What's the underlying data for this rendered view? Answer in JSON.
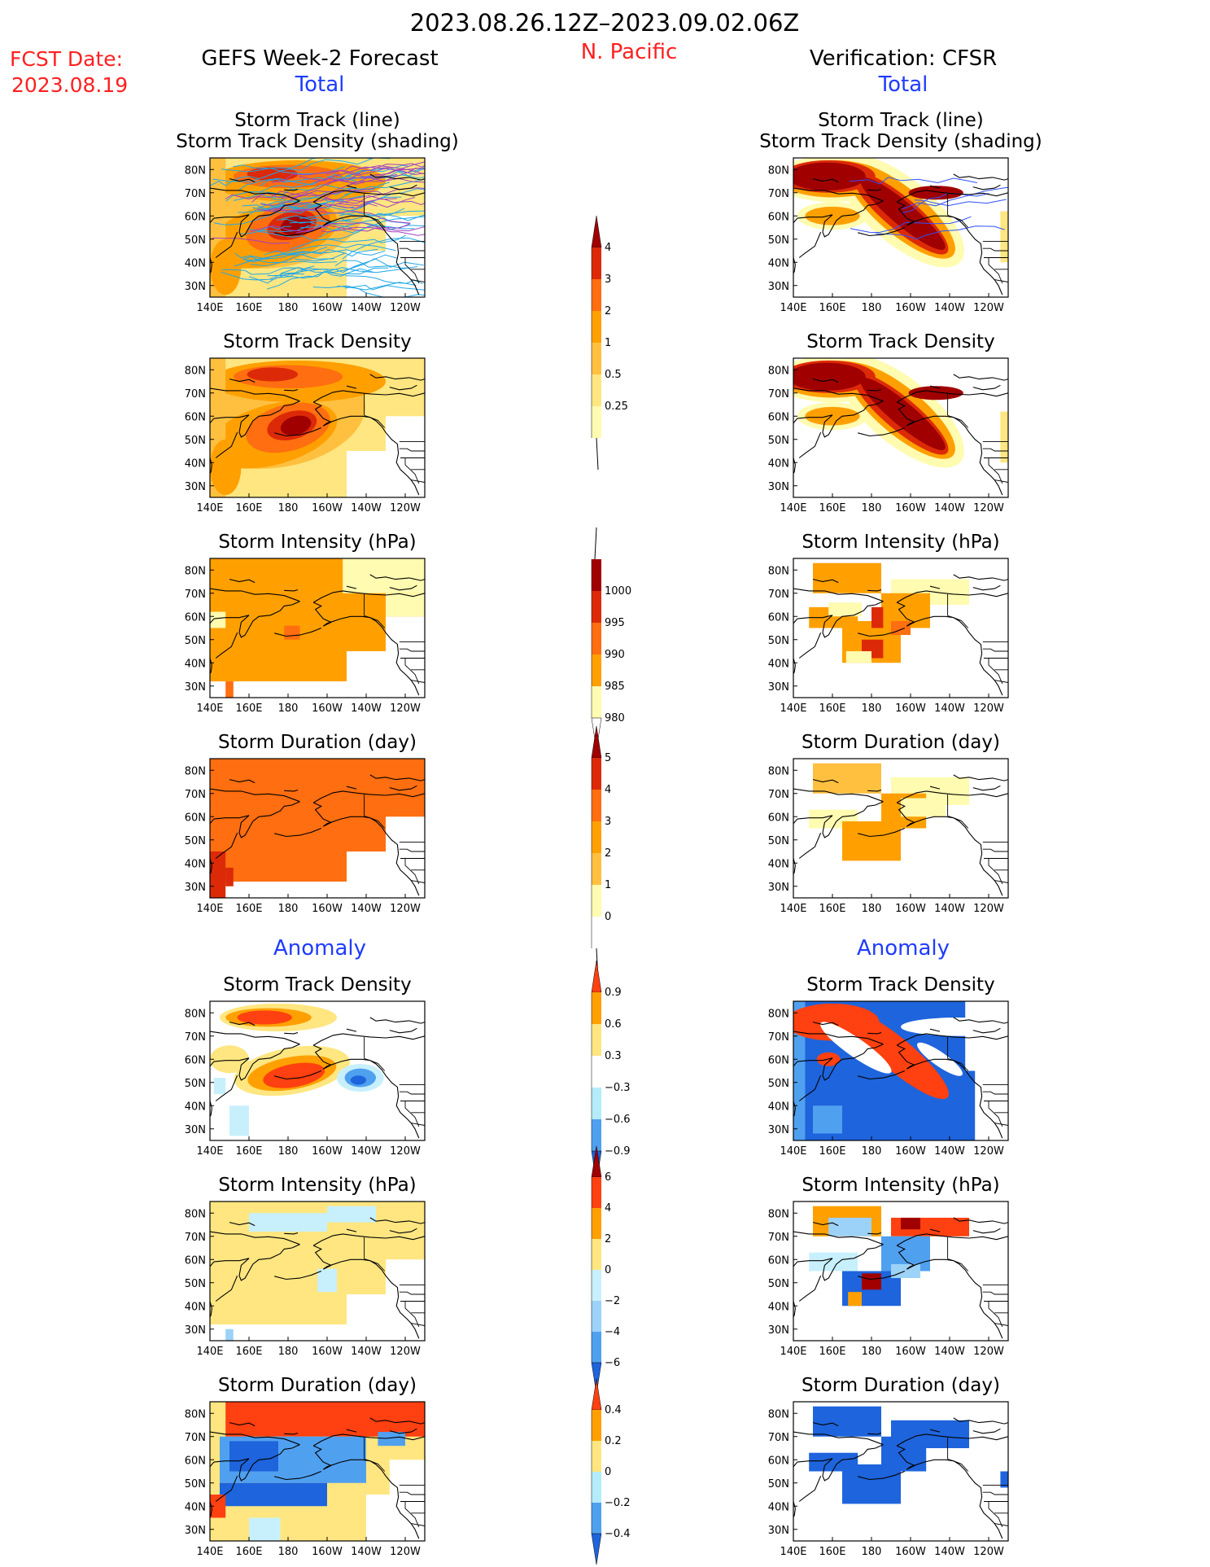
{
  "header": {
    "period": "2023.08.26.12Z–2023.09.02.06Z",
    "region": "N. Pacific",
    "fcst_label": "FCST Date:",
    "fcst_date": "2023.08.19",
    "left_title": "GEFS Week-2 Forecast",
    "right_title": "Verification: CFSR",
    "total_label": "Total",
    "anomaly_label": "Anomaly"
  },
  "colors": {
    "title_red": "#ff2020",
    "section_blue": "#1e3cff",
    "land_black": "#000000",
    "track_cyan": "#1fa8e8",
    "track_purple": "#a040c0",
    "track_blue": "#3050ff"
  },
  "axes": {
    "lon_ticks": [
      "140E",
      "160E",
      "180",
      "160W",
      "140W",
      "120W"
    ],
    "lat_ticks": [
      "80N",
      "70N",
      "60N",
      "50N",
      "40N",
      "30N"
    ]
  },
  "panels": {
    "track": "Storm Track (line)",
    "track_shading": "Storm Track Density (shading)",
    "density": "Storm Track Density",
    "intensity": "Storm Intensity (hPa)",
    "duration": "Storm Duration (day)"
  },
  "colorbars": {
    "density": {
      "labels": [
        "4",
        "3",
        "2",
        "1",
        "0.5",
        "0.25"
      ],
      "colors": [
        "#fffbb0",
        "#ffe680",
        "#ffc040",
        "#ffa000",
        "#ff6e10",
        "#dc2a08",
        "#a00000"
      ]
    },
    "intensity": {
      "labels": [
        "1000",
        "995",
        "990",
        "985",
        "980"
      ],
      "colors": [
        "#ffffff",
        "#fffbb0",
        "#ffa000",
        "#ff6e10",
        "#dc2a08",
        "#a00000"
      ]
    },
    "duration": {
      "labels": [
        "5",
        "4",
        "3",
        "2",
        "1",
        "0"
      ],
      "colors": [
        "#ffffff",
        "#fffbb0",
        "#ffc040",
        "#ffa000",
        "#ff6e10",
        "#dc2a08",
        "#a00000"
      ]
    },
    "anom_density": {
      "labels": [
        "0.9",
        "0.6",
        "0.3",
        "−0.3",
        "−0.6",
        "−0.9"
      ],
      "colors": [
        "#1e64dc",
        "#50a0f0",
        "#b4ecfa",
        "#ffffff",
        "#ffe680",
        "#ffa000",
        "#ff4010"
      ]
    },
    "anom_intensity": {
      "labels": [
        "6",
        "4",
        "2",
        "0",
        "−2",
        "−4",
        "−6"
      ],
      "colors": [
        "#1e64dc",
        "#50a0f0",
        "#9cd2f8",
        "#c8f0fc",
        "#ffe680",
        "#ffa000",
        "#ff4010",
        "#a00000"
      ]
    },
    "anom_duration": {
      "labels": [
        "0.4",
        "0.2",
        "0",
        "−0.2",
        "−0.4"
      ],
      "colors": [
        "#1e64dc",
        "#50a0f0",
        "#b4ecfa",
        "#ffe680",
        "#ffa000",
        "#ff4010"
      ]
    }
  },
  "chart_data": {
    "type": "heatmap",
    "title": "2023.08.26.12Z–2023.09.02.06Z",
    "region": "N. Pacific",
    "xlim": [
      "140E",
      "110W"
    ],
    "ylim": [
      "25N",
      "85N"
    ],
    "panels": [
      {
        "column": "GEFS Week-2 Forecast",
        "section": "Total",
        "field": "Storm Track (line) / Storm Track Density (shading)",
        "max_region": "Bering Sea ~55N 175E and Arctic ~78N 170E",
        "max_value": "> 4"
      },
      {
        "column": "GEFS Week-2 Forecast",
        "section": "Total",
        "field": "Storm Track Density",
        "max_region": "Bering Sea ~55N 180",
        "max_value": "> 4"
      },
      {
        "column": "GEFS Week-2 Forecast",
        "section": "Total",
        "field": "Storm Intensity (hPa)",
        "typical_value": "990-995"
      },
      {
        "column": "GEFS Week-2 Forecast",
        "section": "Total",
        "field": "Storm Duration (day)",
        "typical_value": "3-4"
      },
      {
        "column": "GEFS Week-2 Forecast",
        "section": "Anomaly",
        "field": "Storm Track Density",
        "positive_region": "Bering Sea ~55N 180",
        "negative_region": "Gulf of Alaska ~52N 140W"
      },
      {
        "column": "GEFS Week-2 Forecast",
        "section": "Anomaly",
        "field": "Storm Intensity (hPa)",
        "typical_value": "0 to 2"
      },
      {
        "column": "GEFS Week-2 Forecast",
        "section": "Anomaly",
        "field": "Storm Duration (day)",
        "positive_region": "Arctic ~75N",
        "negative_region": "Bering Sea ~60N"
      },
      {
        "column": "Verification: CFSR",
        "section": "Total",
        "field": "Storm Track (line) / Storm Track Density (shading)",
        "max_region": "Arctic ~75N 160E and Bering-Alaska band",
        "max_value": "> 4"
      },
      {
        "column": "Verification: CFSR",
        "section": "Total",
        "field": "Storm Track Density",
        "max_region": "Arctic ~75N 160E and Bering-Alaska band",
        "max_value": "> 4"
      },
      {
        "column": "Verification: CFSR",
        "section": "Total",
        "field": "Storm Intensity (hPa)",
        "typical_value": "985-995"
      },
      {
        "column": "Verification: CFSR",
        "section": "Total",
        "field": "Storm Duration (day)",
        "typical_value": "1-3"
      },
      {
        "column": "Verification: CFSR",
        "section": "Anomaly",
        "field": "Storm Track Density",
        "positive_region": "Arctic and Bering-Alaska band",
        "negative_region": "surrounding ocean"
      },
      {
        "column": "Verification: CFSR",
        "section": "Anomaly",
        "field": "Storm Intensity (hPa)",
        "typical_value": "-4 to 6"
      },
      {
        "column": "Verification: CFSR",
        "section": "Anomaly",
        "field": "Storm Duration (day)",
        "typical_value": "< -0.4"
      }
    ]
  }
}
